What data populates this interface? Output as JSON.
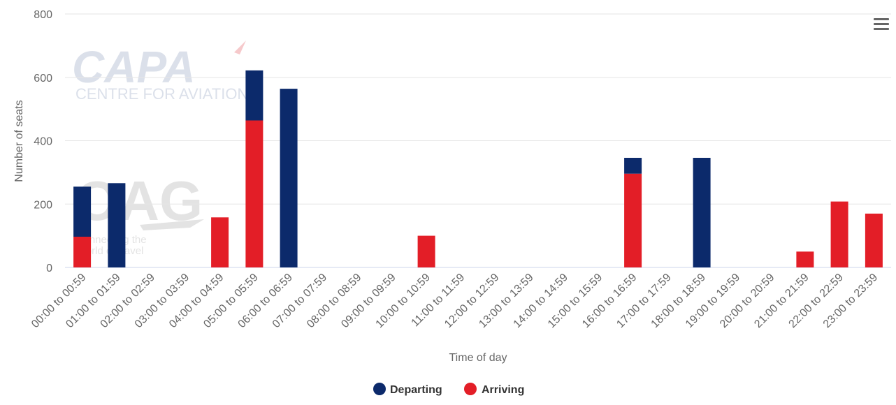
{
  "chart_data": {
    "type": "bar",
    "stacked": true,
    "title": "",
    "xlabel": "Time of day",
    "ylabel": "Number of seats",
    "ylim": [
      0,
      800
    ],
    "yticks": [
      0,
      200,
      400,
      600,
      800
    ],
    "grid": true,
    "legend_position": "bottom",
    "categories": [
      "00:00 to 00:59",
      "01:00 to 01:59",
      "02:00 to 02:59",
      "03:00 to 03:59",
      "04:00 to 04:59",
      "05:00 to 05:59",
      "06:00 to 06:59",
      "07:00 to 07:59",
      "08:00 to 08:59",
      "09:00 to 09:59",
      "10:00 to 10:59",
      "11:00 to 11:59",
      "12:00 to 12:59",
      "13:00 to 13:59",
      "14:00 to 14:59",
      "15:00 to 15:59",
      "16:00 to 16:59",
      "17:00 to 17:59",
      "18:00 to 18:59",
      "19:00 to 19:59",
      "20:00 to 20:59",
      "21:00 to 21:59",
      "22:00 to 22:59",
      "23:00 to 23:59"
    ],
    "series": [
      {
        "name": "Departing",
        "color": "#0c2a6b",
        "values": [
          158,
          266,
          0,
          0,
          0,
          158,
          564,
          0,
          0,
          0,
          0,
          0,
          0,
          0,
          0,
          0,
          50,
          0,
          346,
          0,
          0,
          0,
          0,
          0
        ]
      },
      {
        "name": "Arriving",
        "color": "#e31e27",
        "values": [
          97,
          0,
          0,
          0,
          158,
          464,
          0,
          0,
          0,
          0,
          100,
          0,
          0,
          0,
          0,
          0,
          296,
          0,
          0,
          0,
          0,
          50,
          208,
          170
        ]
      }
    ]
  },
  "watermarks": {
    "capa_logo": "CAPA",
    "capa_sub": "CENTRE FOR AVIATION",
    "oag_logo": "OAG",
    "oag_tagline_1": "connecting the",
    "oag_tagline_2": "world of travel"
  },
  "menu": {
    "icon": "hamburger-menu-icon"
  }
}
